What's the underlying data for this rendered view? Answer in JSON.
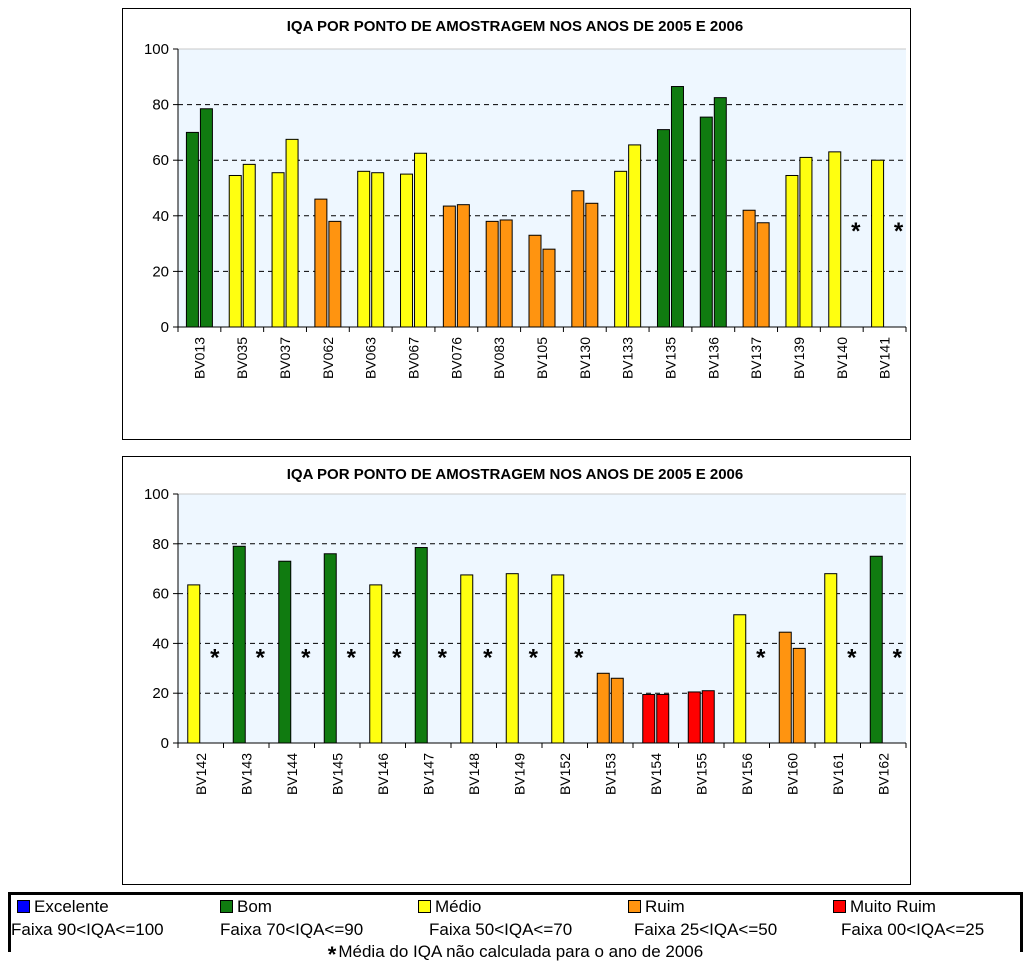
{
  "colors": {
    "Bom": "#107b10",
    "Medio": "#ffff10",
    "Ruim": "#ff9410",
    "MuitoRuim": "#ff0000",
    "Excelente": "#0000ff",
    "plot_bg": "#eef7ff"
  },
  "chart_data": [
    {
      "type": "bar",
      "title": "IQA POR PONTO DE AMOSTRAGEM NOS ANOS DE 2005 E 2006",
      "ylim": [
        0,
        100
      ],
      "yticks": [
        "0",
        "20",
        "40",
        "60",
        "80",
        "100"
      ],
      "grid": true,
      "categories": [
        "BV013",
        "BV035",
        "BV037",
        "BV062",
        "BV063",
        "BV067",
        "BV076",
        "BV083",
        "BV105",
        "BV130",
        "BV133",
        "BV135",
        "BV136",
        "BV137",
        "BV139",
        "BV140",
        "BV141"
      ],
      "series": [
        {
          "values": [
            70,
            54.5,
            55.5,
            46,
            56,
            55,
            43.5,
            38,
            33,
            49,
            56,
            71,
            75.5,
            42,
            54.5,
            63,
            60
          ]
        },
        {
          "values": [
            78.5,
            58.5,
            67.5,
            38,
            55.5,
            62.5,
            44,
            38.5,
            28,
            44.5,
            65.5,
            86.5,
            82.5,
            37.5,
            61,
            null,
            null
          ]
        }
      ],
      "classes": [
        [
          "Bom",
          "Medio",
          "Medio",
          "Ruim",
          "Medio",
          "Medio",
          "Ruim",
          "Ruim",
          "Ruim",
          "Ruim",
          "Medio",
          "Bom",
          "Bom",
          "Ruim",
          "Medio",
          "Medio",
          "Medio"
        ],
        [
          "Bom",
          "Medio",
          "Medio",
          "Ruim",
          "Medio",
          "Medio",
          "Ruim",
          "Ruim",
          "Ruim",
          "Ruim",
          "Medio",
          "Bom",
          "Bom",
          "Ruim",
          "Medio",
          null,
          null
        ]
      ],
      "star_symbol": "*"
    },
    {
      "type": "bar",
      "title": "IQA POR PONTO DE AMOSTRAGEM NOS ANOS DE 2005 E 2006",
      "ylim": [
        0,
        100
      ],
      "yticks": [
        "0",
        "20",
        "40",
        "60",
        "80",
        "100"
      ],
      "grid": true,
      "categories": [
        "BV142",
        "BV143",
        "BV144",
        "BV145",
        "BV146",
        "BV147",
        "BV148",
        "BV149",
        "BV152",
        "BV153",
        "BV154",
        "BV155",
        "BV156",
        "BV160",
        "BV161",
        "BV162"
      ],
      "series": [
        {
          "values": [
            63.5,
            79,
            73,
            76,
            63.5,
            78.5,
            67.5,
            68,
            67.5,
            28,
            19.5,
            20.5,
            51.5,
            44.5,
            68,
            75
          ]
        },
        {
          "values": [
            null,
            null,
            null,
            null,
            null,
            null,
            null,
            null,
            null,
            26,
            19.5,
            21,
            null,
            38,
            null,
            null
          ]
        }
      ],
      "classes": [
        [
          "Medio",
          "Bom",
          "Bom",
          "Bom",
          "Medio",
          "Bom",
          "Medio",
          "Medio",
          "Medio",
          "Ruim",
          "MuitoRuim",
          "MuitoRuim",
          "Medio",
          "Ruim",
          "Medio",
          "Bom"
        ],
        [
          null,
          null,
          null,
          null,
          null,
          null,
          null,
          null,
          null,
          "Ruim",
          "MuitoRuim",
          "MuitoRuim",
          null,
          "Ruim",
          null,
          null
        ]
      ],
      "star_symbol": "*"
    }
  ],
  "legend": {
    "items": [
      {
        "key": "Excelente",
        "label": "Excelente",
        "range": "Faixa 90<IQA<=100"
      },
      {
        "key": "Bom",
        "label": "Bom",
        "range": "Faixa 70<IQA<=90"
      },
      {
        "key": "Medio",
        "label": "Médio",
        "range": "Faixa 50<IQA<=70"
      },
      {
        "key": "Ruim",
        "label": "Ruim",
        "range": "Faixa 25<IQA<=50"
      },
      {
        "key": "MuitoRuim",
        "label": "Muito Ruim",
        "range": "Faixa 00<IQA<=25"
      }
    ],
    "note_symbol": "*",
    "note": "Média do IQA não calculada para o ano de 2006"
  }
}
